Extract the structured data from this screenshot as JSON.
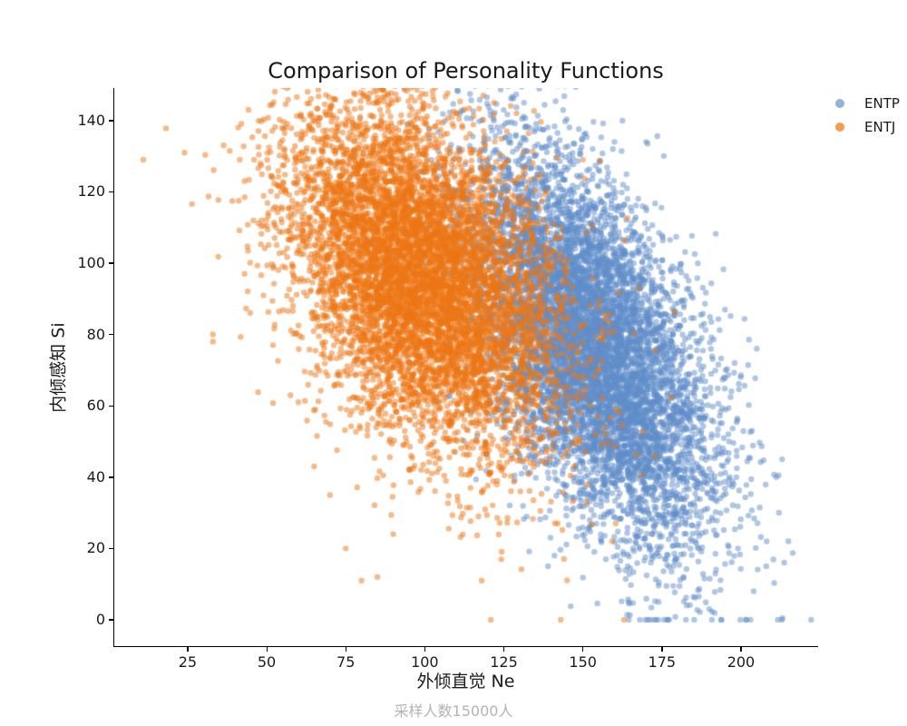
{
  "chart_data": {
    "type": "scatter",
    "title": "Comparison of Personality Functions",
    "xlabel": "外倾直觉 Ne",
    "ylabel": "内倾感知 Si",
    "footer": "采样人数15000人",
    "xlim": [
      1.8,
      224.1
    ],
    "ylim": [
      -7.4,
      149.1
    ],
    "xticks": [
      25,
      50,
      75,
      100,
      125,
      150,
      175,
      200
    ],
    "yticks": [
      0,
      20,
      40,
      60,
      80,
      100,
      120,
      140
    ],
    "grid": false,
    "legend_position": "upper-right-outside",
    "marker": {
      "radius": 3.2,
      "alpha": 0.5
    },
    "seed": 42,
    "background_color": "#ffffff",
    "axis_color": "#000000",
    "footer_color": "#b3b3b3",
    "series": [
      {
        "name": "ENTP",
        "color": "#5F8DC9",
        "legend_color": "#8FB2E2",
        "n": 7500,
        "mean": [
          153,
          76
        ],
        "std": [
          19,
          27
        ],
        "corr": -0.55,
        "clamp_y_min": 0,
        "outliers": [
          [
            160,
            134
          ],
          [
            170,
            134
          ],
          [
            215,
            22
          ],
          [
            213,
            45
          ],
          [
            205,
            76
          ],
          [
            198,
            72
          ],
          [
            190,
            3
          ],
          [
            204,
            8
          ],
          [
            141,
            18
          ],
          [
            208,
            15
          ],
          [
            212,
            30
          ],
          [
            196,
            45
          ]
        ]
      },
      {
        "name": "ENTJ",
        "color": "#ED7614",
        "legend_color": "#F79B4D",
        "n": 7500,
        "mean": [
          99,
          96
        ],
        "std": [
          21,
          24
        ],
        "corr": -0.42,
        "clamp_y_min": 0,
        "outliers": [
          [
            11,
            129
          ],
          [
            24,
            131
          ],
          [
            33,
            80
          ],
          [
            33,
            78
          ],
          [
            41,
            138
          ],
          [
            43,
            123
          ],
          [
            46,
            129
          ],
          [
            43,
            97
          ],
          [
            52,
            77
          ],
          [
            64,
            142
          ],
          [
            60,
            61
          ],
          [
            65,
            43
          ],
          [
            80,
            11
          ],
          [
            85,
            12
          ],
          [
            90,
            24
          ],
          [
            118,
            11
          ],
          [
            143,
            0
          ],
          [
            163,
            0
          ],
          [
            96,
            143
          ],
          [
            110,
            142
          ],
          [
            129,
            142
          ],
          [
            150,
            129
          ],
          [
            75,
            20
          ],
          [
            70,
            35
          ]
        ]
      }
    ]
  }
}
